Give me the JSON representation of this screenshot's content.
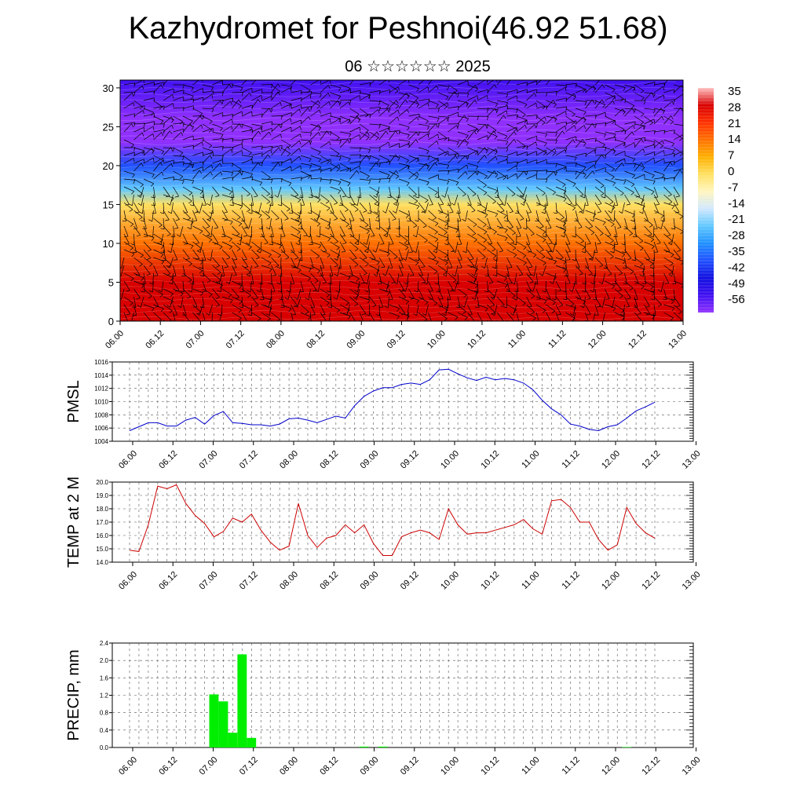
{
  "header": {
    "title": "Kazhydromet for Peshnoi(46.92 51.68)",
    "subtitle": "06 ☆☆☆☆☆☆ 2025"
  },
  "chart_data": [
    {
      "type": "heatmap",
      "title": "",
      "xlabel": "",
      "ylabel": "",
      "x_tick_labels": [
        "06.00",
        "06.12",
        "07.00",
        "07.12",
        "08.00",
        "08.12",
        "09.00",
        "09.12",
        "10.00",
        "10.12",
        "11.00",
        "11.12",
        "12.00",
        "12.12",
        "13.00"
      ],
      "y_ticks": [
        0,
        5,
        10,
        15,
        20,
        25,
        30
      ],
      "ylim": [
        0,
        31
      ],
      "colorbar_labels": [
        "35",
        "28",
        "21",
        "14",
        "7",
        "0",
        "-7",
        "-14",
        "-21",
        "-28",
        "-35",
        "-42",
        "-49",
        "-56"
      ],
      "colorbar_colors": [
        "#ffc0c0",
        "#d80000",
        "#ff3000",
        "#ff7000",
        "#ffb000",
        "#ffe060",
        "#fff6c0",
        "#d0e8ff",
        "#60c8ff",
        "#2090ff",
        "#2050ff",
        "#1010e0",
        "#4010f0",
        "#9030ff"
      ],
      "temperature_profile": [
        {
          "height": 0,
          "value": 30
        },
        {
          "height": 5,
          "value": 25
        },
        {
          "height": 10,
          "value": 14
        },
        {
          "height": 15,
          "value": 0
        },
        {
          "height": 17,
          "value": -20
        },
        {
          "height": 20,
          "value": -35
        },
        {
          "height": 23,
          "value": -56
        },
        {
          "height": 26,
          "value": -58
        },
        {
          "height": 31,
          "value": -50
        }
      ],
      "overlay": "wind barbs"
    },
    {
      "type": "line",
      "ylabel": "PMSL",
      "ylim": [
        1004,
        1016
      ],
      "y_ticks": [
        "1004",
        "1006",
        "1008",
        "1010",
        "1012",
        "1014",
        "1016"
      ],
      "x_tick_labels": [
        "06.00",
        "06.12",
        "07.00",
        "07.12",
        "08.00",
        "08.12",
        "09.00",
        "09.12",
        "10.00",
        "10.12",
        "11.00",
        "11.12",
        "12.00",
        "12.12",
        "13.00"
      ],
      "color": "#0000cc",
      "x": [
        0,
        1,
        2,
        3,
        4,
        5,
        6,
        7,
        8,
        9,
        10,
        11,
        12,
        13,
        14,
        15,
        16,
        17,
        18,
        19,
        20,
        21,
        22,
        23,
        24,
        25,
        26,
        27,
        28,
        29,
        30,
        31,
        32,
        33,
        34,
        35,
        36,
        37,
        38,
        39,
        40,
        41,
        42,
        43,
        44,
        45,
        46,
        47,
        48,
        49,
        50,
        51,
        52,
        53,
        54,
        55,
        56
      ],
      "values": [
        1005.6,
        1006.2,
        1006.8,
        1006.8,
        1006.3,
        1006.3,
        1007.2,
        1007.6,
        1006.6,
        1007.9,
        1008.5,
        1006.8,
        1006.7,
        1006.5,
        1006.5,
        1006.3,
        1006.6,
        1007.4,
        1007.5,
        1007.2,
        1006.8,
        1007.3,
        1007.8,
        1007.5,
        1009.4,
        1010.8,
        1011.6,
        1012.1,
        1012.1,
        1012.6,
        1012.8,
        1012.6,
        1013.3,
        1014.8,
        1014.9,
        1014.2,
        1013.6,
        1013.2,
        1013.7,
        1013.3,
        1013.5,
        1013.3,
        1012.8,
        1011.8,
        1010.2,
        1008.9,
        1008.0,
        1006.6,
        1006.3,
        1005.8,
        1005.6,
        1006.2,
        1006.5,
        1007.5,
        1008.6,
        1009.2,
        1009.9
      ]
    },
    {
      "type": "line",
      "ylabel": "TEMP at 2 M",
      "ylim": [
        14.0,
        20.0
      ],
      "y_ticks": [
        "14.0",
        "15.0",
        "16.0",
        "17.0",
        "18.0",
        "19.0",
        "20.0"
      ],
      "x_tick_labels": [
        "06.00",
        "06.12",
        "07.00",
        "07.12",
        "08.00",
        "08.12",
        "09.00",
        "09.12",
        "10.00",
        "10.12",
        "11.00",
        "11.12",
        "12.00",
        "12.12",
        "13.00"
      ],
      "color": "#cc0000",
      "x": [
        0,
        1,
        2,
        3,
        4,
        5,
        6,
        7,
        8,
        9,
        10,
        11,
        12,
        13,
        14,
        15,
        16,
        17,
        18,
        19,
        20,
        21,
        22,
        23,
        24,
        25,
        26,
        27,
        28,
        29,
        30,
        31,
        32,
        33,
        34,
        35,
        36,
        37,
        38,
        39,
        40,
        41,
        42,
        43,
        44,
        45,
        46,
        47,
        48,
        49,
        50,
        51,
        52,
        53,
        54,
        55,
        56
      ],
      "values": [
        14.9,
        14.8,
        16.8,
        19.7,
        19.5,
        19.8,
        18.4,
        17.5,
        16.9,
        15.9,
        16.3,
        17.3,
        17.0,
        17.6,
        16.4,
        15.5,
        14.9,
        15.2,
        18.4,
        16.0,
        15.1,
        15.8,
        16.0,
        16.8,
        16.2,
        16.8,
        15.4,
        14.5,
        14.5,
        15.9,
        16.2,
        16.4,
        16.2,
        15.7,
        18.0,
        16.8,
        16.1,
        16.2,
        16.2,
        16.4,
        16.6,
        16.8,
        17.2,
        16.5,
        16.1,
        18.6,
        18.7,
        18.1,
        17.0,
        17.0,
        15.7,
        14.9,
        15.3,
        18.1,
        16.9,
        16.2,
        15.8
      ]
    },
    {
      "type": "bar",
      "ylabel": "PRECIP, mm",
      "ylim": [
        0.0,
        2.4
      ],
      "y_ticks": [
        "0.0",
        "0.4",
        "0.8",
        "1.2",
        "1.6",
        "2.0",
        "2.4"
      ],
      "x_tick_labels": [
        "06.00",
        "06.12",
        "07.00",
        "07.12",
        "08.00",
        "08.12",
        "09.00",
        "09.12",
        "10.00",
        "10.12",
        "11.00",
        "11.12",
        "12.00",
        "12.12",
        "13.00"
      ],
      "color": "#00ee00",
      "x": [
        9,
        10,
        11,
        12,
        13,
        25,
        27,
        53
      ],
      "values": [
        1.22,
        1.06,
        0.34,
        2.14,
        0.22,
        0.02,
        0.02,
        0.01
      ]
    }
  ]
}
